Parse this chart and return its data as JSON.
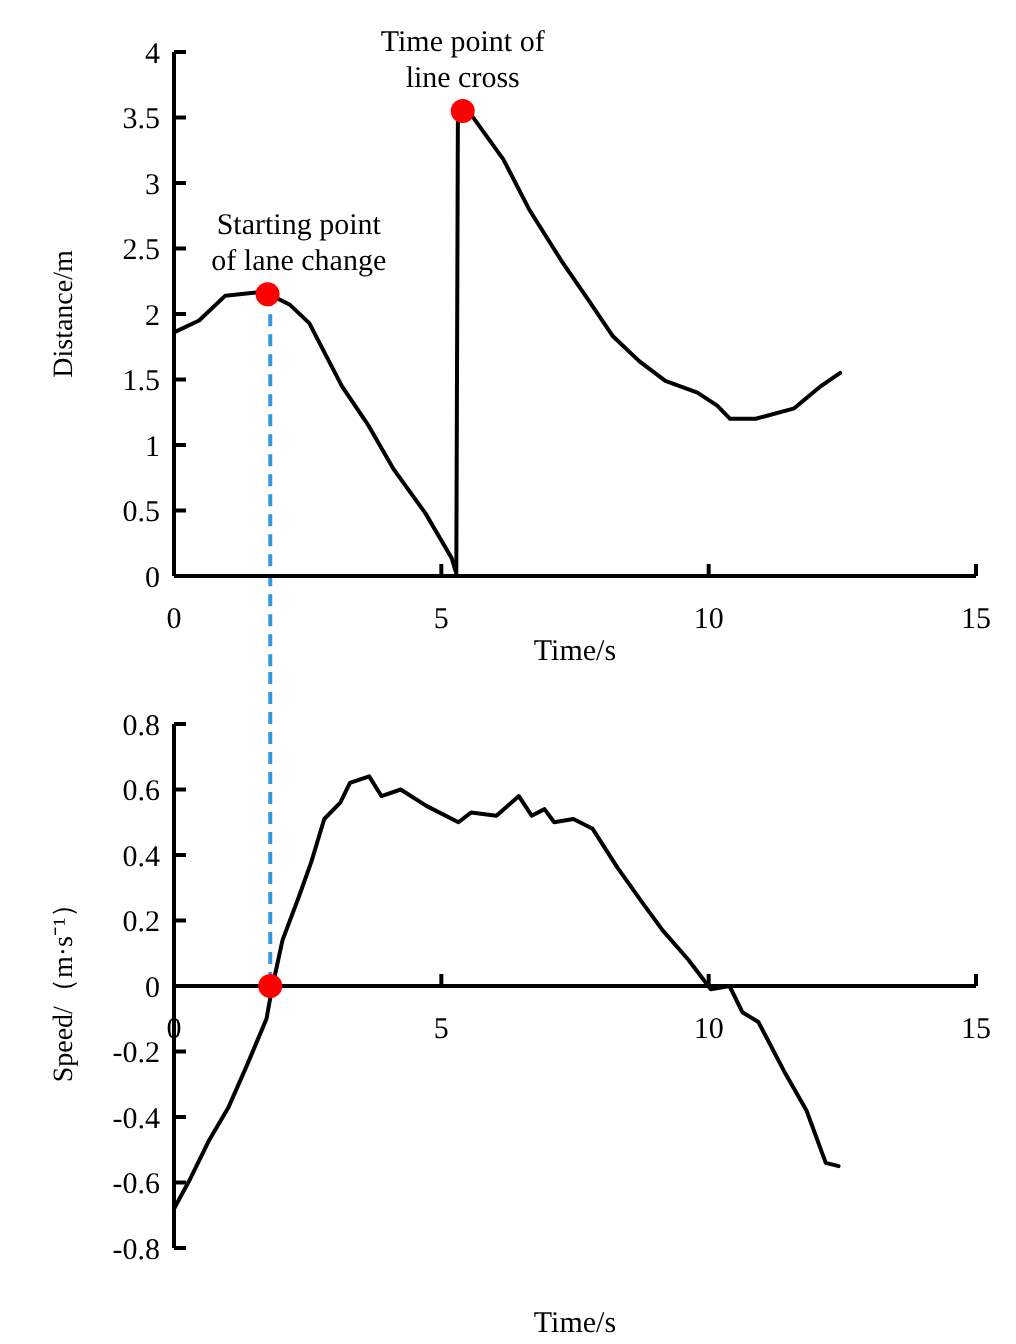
{
  "chart_data": [
    {
      "type": "line",
      "xlabel": "Time/s",
      "ylabel": "Distance/m",
      "xlim": [
        0,
        15
      ],
      "xticks": [
        0,
        5,
        10,
        15
      ],
      "ylim": [
        0,
        4
      ],
      "yticks": [
        0,
        0.5,
        1,
        1.5,
        2,
        2.5,
        3,
        3.5,
        4
      ],
      "series": [
        {
          "color": "#000000",
          "x": [
            0,
            0.47,
            0.96,
            1.68,
            2.17,
            2.53,
            3.14,
            3.62,
            4.1,
            4.7,
            5.19,
            5.28,
            5.31,
            5.56,
            6.16,
            6.64,
            7.24,
            7.73,
            8.21,
            8.7,
            9.19,
            9.79,
            10.16,
            10.4,
            10.88,
            11.6,
            12.1,
            12.46
          ],
          "values": [
            1.86,
            1.95,
            2.14,
            2.17,
            2.07,
            1.93,
            1.45,
            1.16,
            0.82,
            0.48,
            0.14,
            0.02,
            3.54,
            3.52,
            3.18,
            2.8,
            2.41,
            2.12,
            1.83,
            1.64,
            1.49,
            1.4,
            1.3,
            1.2,
            1.2,
            1.28,
            1.45,
            1.55
          ]
        },
        {
          "type": "scatter",
          "marker": "circle",
          "color": "#ff0000",
          "x": [
            1.75,
            5.4
          ],
          "values": [
            2.15,
            3.55
          ]
        }
      ],
      "ref_lines": [
        {
          "axis": "x",
          "value": 1.8,
          "color": "#3399dd",
          "line_style": "dashed"
        }
      ],
      "annotations": [
        {
          "text": "Starting point of lane change",
          "x": 1.75,
          "y": 2.15
        },
        {
          "text": "Time point of line cross",
          "x": 5.4,
          "y": 3.55
        }
      ]
    },
    {
      "type": "line",
      "xlabel": "Time/s",
      "ylabel": "Speed/（m·s⁻¹）",
      "xlim": [
        0,
        15
      ],
      "xticks": [
        0,
        5,
        10,
        15
      ],
      "ylim": [
        -0.8,
        0.8
      ],
      "yticks": [
        {
          "value": -0.8,
          "label": "-0.8"
        },
        {
          "value": -0.6,
          "label": "-0.6"
        },
        {
          "value": -0.4,
          "label": "-0.4"
        },
        {
          "value": -0.2,
          "label": "-0.2"
        },
        0,
        0.2,
        0.4,
        0.6,
        0.8
      ],
      "series": [
        {
          "color": "#000000",
          "x": [
            0,
            0.3,
            0.66,
            1.02,
            1.37,
            1.73,
            1.83,
            2.03,
            2.33,
            2.57,
            2.81,
            3.11,
            3.29,
            3.65,
            3.88,
            4.24,
            4.72,
            5.32,
            5.56,
            6.03,
            6.45,
            6.69,
            6.93,
            7.11,
            7.47,
            7.83,
            8.3,
            8.78,
            9.14,
            9.62,
            10.04,
            10.39,
            10.63,
            10.93,
            11.41,
            11.83,
            12.19,
            12.43
          ],
          "values": [
            -0.68,
            -0.59,
            -0.47,
            -0.37,
            -0.24,
            -0.1,
            -0.01,
            0.14,
            0.27,
            0.38,
            0.51,
            0.56,
            0.62,
            0.64,
            0.58,
            0.6,
            0.55,
            0.5,
            0.53,
            0.52,
            0.58,
            0.52,
            0.54,
            0.5,
            0.51,
            0.48,
            0.36,
            0.25,
            0.17,
            0.08,
            -0.01,
            0,
            -0.08,
            -0.11,
            -0.26,
            -0.38,
            -0.54,
            -0.55
          ]
        },
        {
          "type": "scatter",
          "marker": "circle",
          "color": "#ff0000",
          "x": [
            1.8
          ],
          "values": [
            0
          ]
        }
      ],
      "ref_lines": [
        {
          "axis": "x",
          "value": 1.8,
          "color": "#3399dd",
          "line_style": "dashed"
        }
      ]
    }
  ]
}
